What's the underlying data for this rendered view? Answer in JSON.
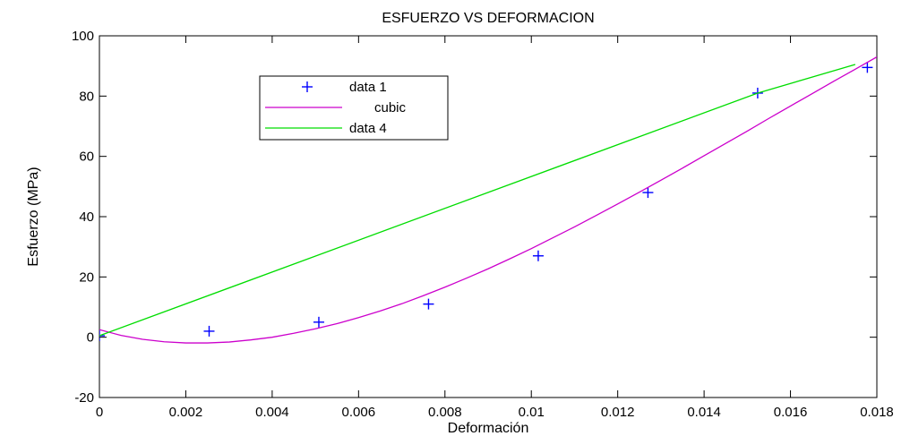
{
  "chart_data": {
    "type": "line",
    "title": "ESFUERZO VS DEFORMACION",
    "xlabel": "Deformación",
    "ylabel": "Esfuerzo (MPa)",
    "xlim": [
      0,
      0.018
    ],
    "ylim": [
      -20,
      100
    ],
    "xticks": [
      0,
      0.002,
      0.004,
      0.006,
      0.008,
      0.01,
      0.012,
      0.014,
      0.016,
      0.018
    ],
    "xtick_labels": [
      "0",
      "0.002",
      "0.004",
      "0.006",
      "0.008",
      "0.01",
      "0.012",
      "0.014",
      "0.016",
      "0.018"
    ],
    "yticks": [
      -20,
      0,
      20,
      40,
      60,
      80,
      100
    ],
    "ytick_labels": [
      "-20",
      "0",
      "20",
      "40",
      "60",
      "80",
      "100"
    ],
    "grid": false,
    "legend_position": "upper-left",
    "series": [
      {
        "name": "data 1",
        "style": "markers",
        "marker": "plus",
        "color": "#0000ff",
        "x": [
          0,
          0.00254,
          0.00508,
          0.00762,
          0.01016,
          0.0127,
          0.01524,
          0.01778
        ],
        "y": [
          0.5,
          2,
          5,
          11,
          27,
          48,
          81,
          89.5
        ]
      },
      {
        "name": "cubic",
        "style": "line",
        "color": "#cc00cc",
        "x": [
          0,
          0.0005,
          0.001,
          0.0015,
          0.002,
          0.0025,
          0.003,
          0.0035,
          0.004,
          0.0045,
          0.005,
          0.0055,
          0.006,
          0.0065,
          0.007,
          0.0075,
          0.008,
          0.0085,
          0.009,
          0.0095,
          0.01,
          0.0105,
          0.011,
          0.0115,
          0.012,
          0.0125,
          0.013,
          0.0135,
          0.014,
          0.0145,
          0.015,
          0.0155,
          0.016,
          0.0165,
          0.017,
          0.0175,
          0.018
        ],
        "y": [
          2.5,
          0.6,
          -0.7,
          -1.5,
          -1.9,
          -1.9,
          -1.6,
          -0.9,
          0,
          1.3,
          2.8,
          4.5,
          6.5,
          8.7,
          11.1,
          13.8,
          16.6,
          19.6,
          22.7,
          26,
          29.4,
          33,
          36.6,
          40.4,
          44.2,
          48.1,
          52.1,
          56.1,
          60.2,
          64.3,
          68.4,
          72.6,
          76.7,
          80.8,
          84.9,
          88.9,
          93
        ]
      },
      {
        "name": "data 4",
        "style": "line",
        "color": "#00dd00",
        "x": [
          0,
          0.01524,
          0.0175
        ],
        "y": [
          0.5,
          81,
          90.5
        ]
      }
    ]
  }
}
